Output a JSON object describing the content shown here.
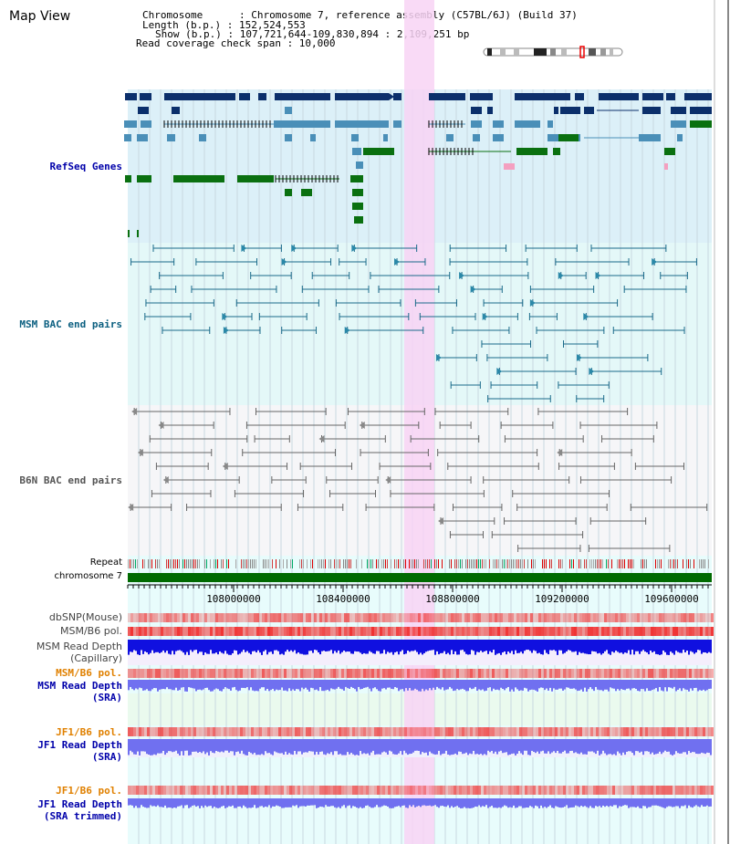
{
  "app": {
    "title": "Map View"
  },
  "info": {
    "chromosome_line": "Chromosome      : Chromosome 7, reference assembly (C57BL/6J) (Build 37)",
    "length_line": "Length (b.p.) : 152,524,553",
    "show_line": "Show (b.p.) : 107,721,644-109,830,894 : 2,109,251 bp",
    "coverage_line": "Read coverage check span : 10,000"
  },
  "tracks": {
    "refseq": {
      "label": "RefSeq Genes",
      "color": "#0000aa"
    },
    "msm_bac": {
      "label": "MSM BAC end pairs",
      "color": "#0b5f80"
    },
    "b6n_bac": {
      "label": "B6N BAC end pairs",
      "color": "#555555"
    },
    "repeat": {
      "label": "Repeat"
    },
    "chromosome": {
      "label": "chromosome 7"
    },
    "dbsnp": {
      "label": "dbSNP(Mouse)"
    },
    "msm_b6_pol": {
      "label": "MSM/B6 pol."
    },
    "msm_depth_cap": {
      "label1": "MSM Read Depth",
      "label2": "(Capillary)"
    },
    "msm_b6_pol2": {
      "label": "MSM/B6 pol."
    },
    "msm_depth_sra": {
      "label1": "MSM Read Depth",
      "label2": "(SRA)"
    },
    "jf1_b6_pol": {
      "label": "JF1/B6 pol."
    },
    "jf1_depth_sra": {
      "label1": "JF1 Read Depth",
      "label2": "(SRA)"
    },
    "jf1_b6_pol2": {
      "label": "JF1/B6 pol."
    },
    "jf1_depth_trim": {
      "label1": "JF1 Read Depth",
      "label2": "(SRA trimmed)"
    }
  },
  "ruler": {
    "ticks": [
      "108000000",
      "108400000",
      "108800000",
      "109200000",
      "109600000"
    ]
  },
  "colors": {
    "refseq_bg": "#dcf0f8",
    "msm_bg": "#e4f8f8",
    "b6n_bg": "#f6f6f8",
    "highlight": "#f8d4f4",
    "gene_dark": "#0b2f6b",
    "gene_mid": "#4a8fb8",
    "gene_green": "#0a7010",
    "chrom_green": "#006a00",
    "depth_dark": "#1010e0",
    "depth_light": "#7070f0",
    "snp_red": "#f04040",
    "pol_orange": "#e08000"
  }
}
